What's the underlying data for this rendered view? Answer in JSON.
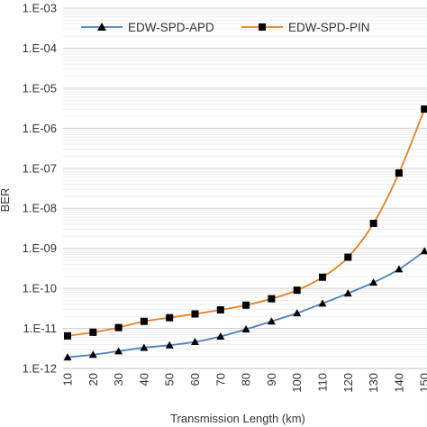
{
  "chart_data": {
    "type": "line",
    "title": "",
    "xlabel": "Transmission Length (km)",
    "ylabel": "BER",
    "x": [
      10,
      20,
      30,
      40,
      50,
      60,
      70,
      80,
      90,
      100,
      110,
      120,
      130,
      140,
      150
    ],
    "y_scale": "log",
    "ylim": [
      1e-12,
      0.001
    ],
    "y_ticks": [
      "1.E-12",
      "1.E-11",
      "1.E-10",
      "1.E-09",
      "1.E-08",
      "1.E-07",
      "1.E-06",
      "1.E-05",
      "1.E-04",
      "1.E-03"
    ],
    "grid": true,
    "legend_position": "top-left",
    "series": [
      {
        "name": "EDW-SPD-APD",
        "color": "#4a7fc0",
        "marker": "triangle",
        "values": [
          1.9e-12,
          2.2e-12,
          2.7e-12,
          3.3e-12,
          3.8e-12,
          4.6e-12,
          6.3e-12,
          9.5e-12,
          1.5e-11,
          2.4e-11,
          4.2e-11,
          7.5e-11,
          1.4e-10,
          3e-10,
          8.5e-10
        ]
      },
      {
        "name": "EDW-SPD-PIN",
        "color": "#e67e22",
        "marker": "square",
        "values": [
          6.5e-12,
          8e-12,
          1.05e-11,
          1.5e-11,
          1.85e-11,
          2.3e-11,
          2.9e-11,
          3.8e-11,
          5.5e-11,
          9e-11,
          1.9e-10,
          6e-10,
          4.2e-09,
          7.6e-08,
          3e-06
        ]
      }
    ]
  }
}
